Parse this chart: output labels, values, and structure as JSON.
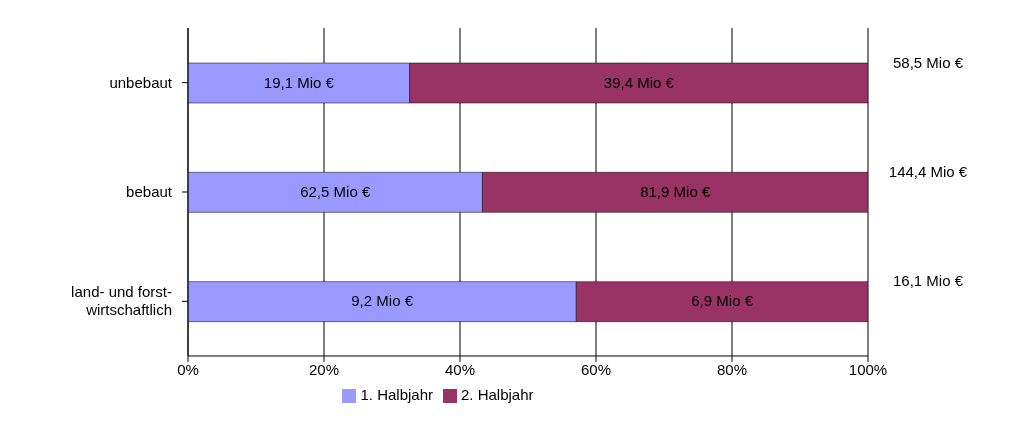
{
  "chart_data": {
    "type": "bar",
    "orientation": "horizontal",
    "stacked": true,
    "categories": [
      "unbebaut",
      "bebaut",
      "land- und forst-\nwirtschaftlich"
    ],
    "series": [
      {
        "name": "1. Halbjahr",
        "color": "#9999ff",
        "values": [
          32.6,
          43.3,
          57.1
        ]
      },
      {
        "name": "2. Halbjahr",
        "color": "#993366",
        "values": [
          67.4,
          56.7,
          42.9
        ]
      }
    ],
    "annotations": [
      "19,1 Mio €",
      "39,4 Mio €",
      "58,5 Mio €",
      "62,5 Mio €",
      "81,9 Mio €",
      "144,4 Mio €",
      "9,2 Mio €",
      "6,9 Mio €",
      "16,1 Mio €"
    ],
    "xlim": [
      0,
      100
    ],
    "xticks": [
      {
        "value": 0,
        "label": "0%"
      },
      {
        "value": 20,
        "label": "20%"
      },
      {
        "value": 40,
        "label": "40%"
      },
      {
        "value": 60,
        "label": "60%"
      },
      {
        "value": 80,
        "label": "80%"
      },
      {
        "value": 100,
        "label": "100%"
      }
    ],
    "grid": "x",
    "legend": "bottom"
  }
}
